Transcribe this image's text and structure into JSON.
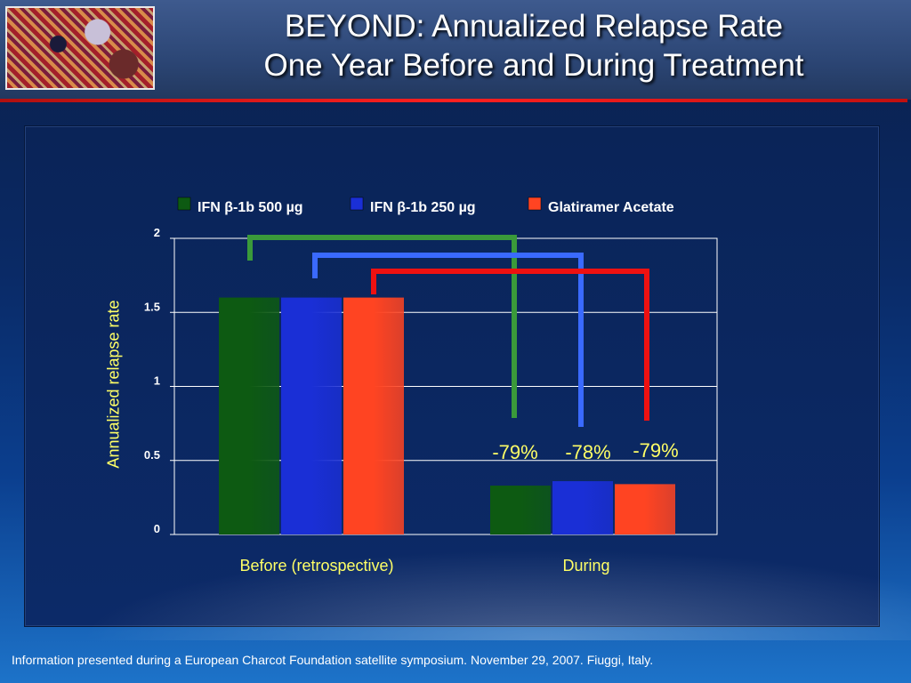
{
  "slide": {
    "title_line1": "BEYOND: Annualized Relapse Rate",
    "title_line2": "One Year Before and During Treatment",
    "footer": "Information presented during a European Charcot Foundation satellite symposium. November 29, 2007. Fiuggi, Italy."
  },
  "chart_data": {
    "type": "bar",
    "categories": [
      "Before (retrospective)",
      "During"
    ],
    "series": [
      {
        "name": "IFN β-1b 500 µg",
        "values": [
          1.6,
          0.33
        ],
        "color": "#0d5a12"
      },
      {
        "name": "IFN β-1b 250 µg",
        "values": [
          1.6,
          0.36
        ],
        "color": "#1a2fd6"
      },
      {
        "name": "Glatiramer Acetate",
        "values": [
          1.6,
          0.34
        ],
        "color": "#ff4422"
      }
    ],
    "ylabel": "Annualized relapse rate",
    "xlabel": "",
    "ylim": [
      0,
      2
    ],
    "yticks": [
      "0",
      "0.5",
      "1",
      "1.5",
      "2"
    ],
    "ytick_values": [
      0,
      0.5,
      1,
      1.5,
      2
    ],
    "grid": true,
    "legend_position": "top",
    "annotations": [
      "-79%",
      "-78%",
      "-79%"
    ],
    "bracket_colors": [
      "#3a9a3a",
      "#3a6aff",
      "#ee1111"
    ]
  }
}
